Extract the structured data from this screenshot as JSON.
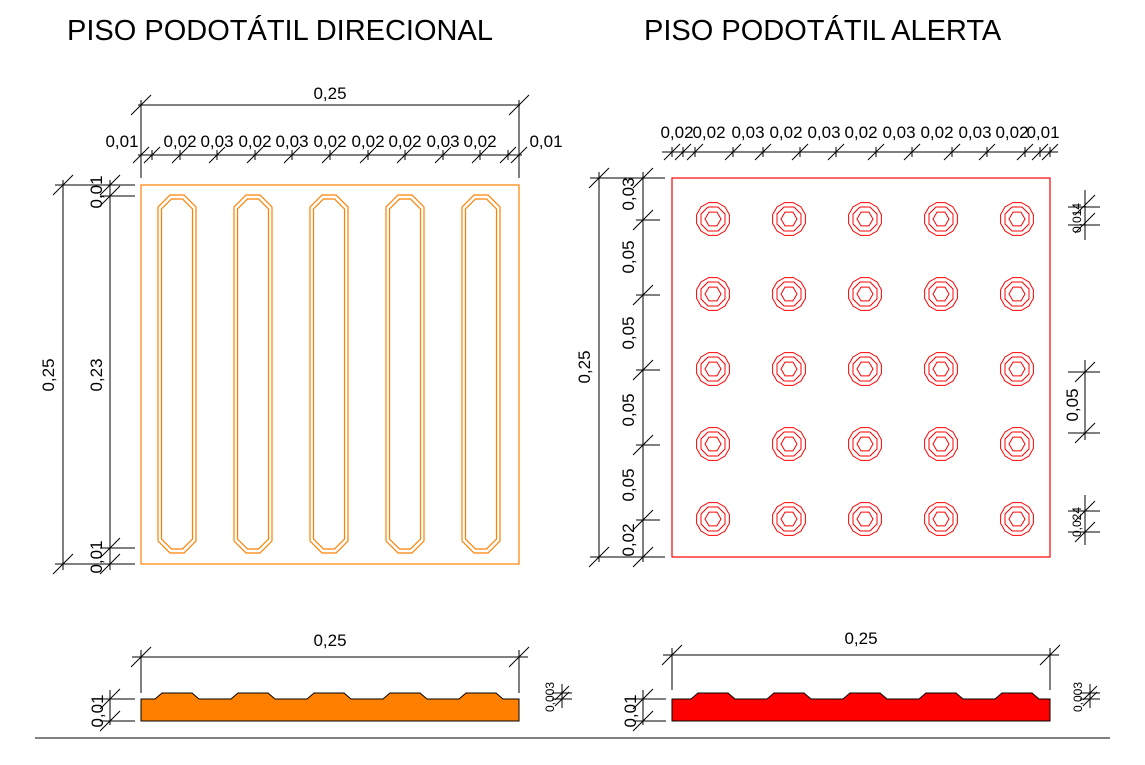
{
  "titles": {
    "directional": "PISO PODOTÁTIL DIRECIONAL",
    "alert": "PISO PODOTÁTIL ALERTA"
  },
  "colors": {
    "directional": "#ff8000",
    "alert": "#ff0000",
    "lines": "#000000"
  },
  "directional": {
    "top_total": "0,25",
    "top_segments": [
      "0,01",
      "0,02",
      "0,03",
      "0,02",
      "0,03",
      "0,02",
      "0,02",
      "0,02",
      "0,03",
      "0,02",
      "0,01"
    ],
    "left_total": "0,25",
    "left_middle": "0,23",
    "left_top": "0,01",
    "left_bottom": "0,01",
    "bars": 5,
    "section_width": "0,25",
    "section_height": "0,01",
    "relief_height": "0,003"
  },
  "alert": {
    "top_segments": [
      "0,02",
      "0,02",
      "0,03",
      "0,02",
      "0,03",
      "0,02",
      "0,03",
      "0,02",
      "0,03",
      "0,02",
      "0,01"
    ],
    "left_total": "0,25",
    "left_segments": [
      "0,03",
      "0,05",
      "0,05",
      "0,05",
      "0,05",
      "0,02"
    ],
    "right_top": "0,014",
    "right_middle": "0,05",
    "right_bottom": "0,024",
    "rows": 5,
    "cols": 5,
    "section_width": "0,25",
    "section_height": "0,01",
    "relief_height": "0,003"
  }
}
